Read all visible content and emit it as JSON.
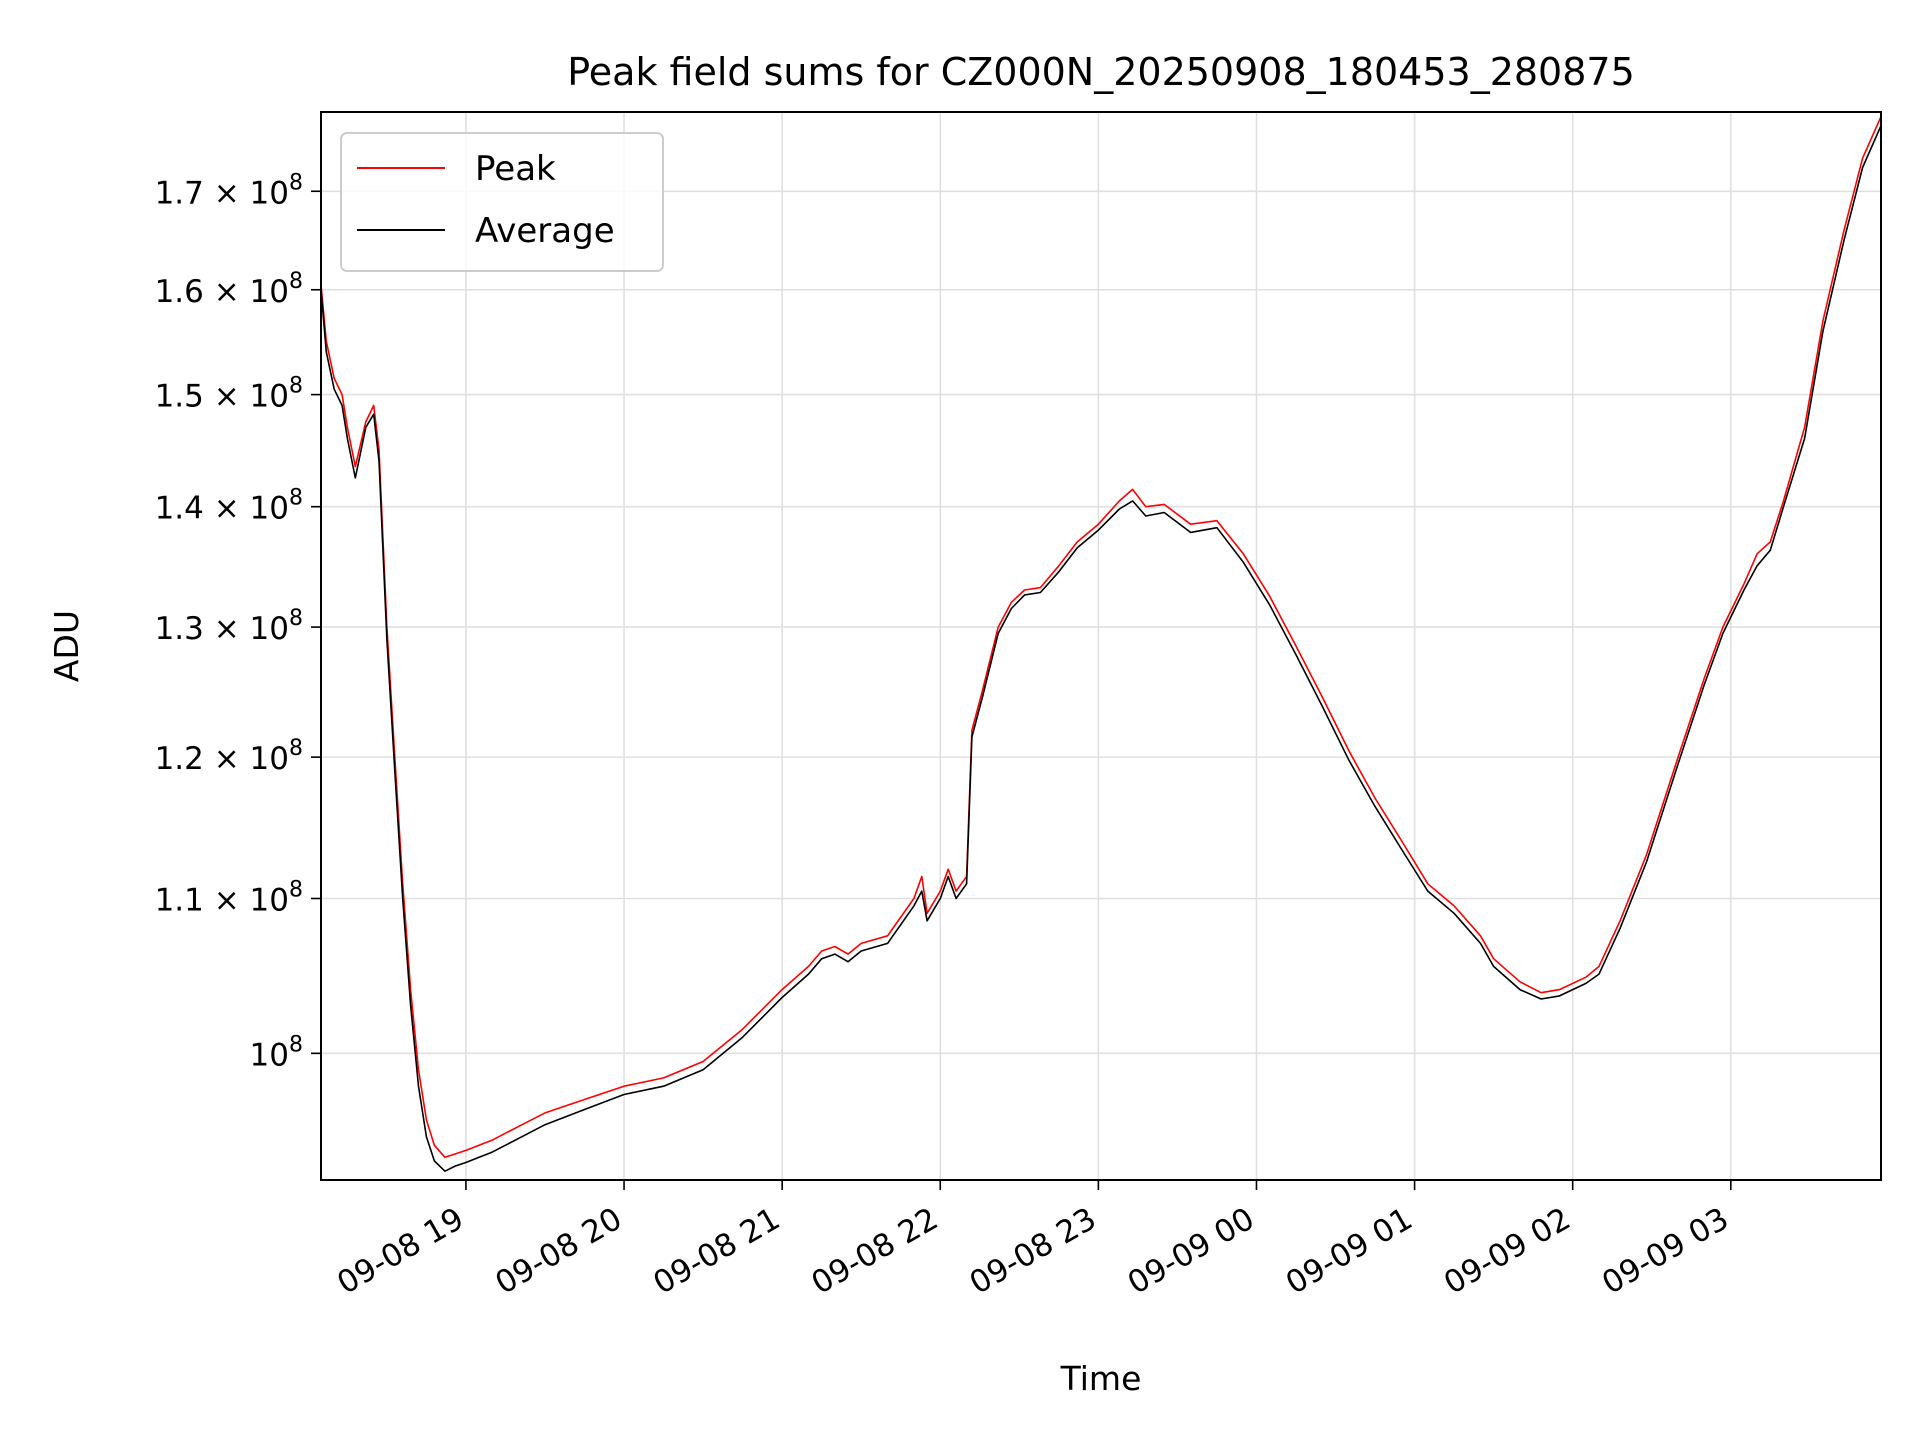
{
  "chart_data": {
    "type": "line",
    "title": "Peak field sums for CZ000N_20250908_180453_280875",
    "xlabel": "Time",
    "ylabel": "ADU",
    "yscale": "log",
    "ylim": [
      92500000,
      178500000
    ],
    "xlim": [
      "2025-09-08T18:05",
      "2025-09-09T03:57"
    ],
    "grid": true,
    "legend": "top-left",
    "x_ticks": [
      {
        "t": "2025-09-08T19:00",
        "label": "09-08 19"
      },
      {
        "t": "2025-09-08T20:00",
        "label": "09-08 20"
      },
      {
        "t": "2025-09-08T21:00",
        "label": "09-08 21"
      },
      {
        "t": "2025-09-08T22:00",
        "label": "09-08 22"
      },
      {
        "t": "2025-09-08T23:00",
        "label": "09-08 23"
      },
      {
        "t": "2025-09-09T00:00",
        "label": "09-09 00"
      },
      {
        "t": "2025-09-09T01:00",
        "label": "09-09 01"
      },
      {
        "t": "2025-09-09T02:00",
        "label": "09-09 02"
      },
      {
        "t": "2025-09-09T03:00",
        "label": "09-09 03"
      }
    ],
    "y_ticks": [
      {
        "value": 100000000,
        "mant": "",
        "exp": "8"
      },
      {
        "value": 110000000,
        "mant": "1.1",
        "exp": "8"
      },
      {
        "value": 120000000,
        "mant": "1.2",
        "exp": "8"
      },
      {
        "value": 130000000,
        "mant": "1.3",
        "exp": "8"
      },
      {
        "value": 140000000,
        "mant": "1.4",
        "exp": "8"
      },
      {
        "value": 150000000,
        "mant": "1.5",
        "exp": "8"
      },
      {
        "value": 160000000,
        "mant": "1.6",
        "exp": "8"
      },
      {
        "value": 170000000,
        "mant": "1.7",
        "exp": "8"
      }
    ],
    "series": [
      {
        "name": "Peak",
        "color": "#ff0000",
        "points": [
          [
            "2025-09-08T18:05",
            160500000
          ],
          [
            "2025-09-08T18:07",
            155000000
          ],
          [
            "2025-09-08T18:10",
            151500000
          ],
          [
            "2025-09-08T18:13",
            150000000
          ],
          [
            "2025-09-08T18:15",
            147000000
          ],
          [
            "2025-09-08T18:18",
            143500000
          ],
          [
            "2025-09-08T18:22",
            147500000
          ],
          [
            "2025-09-08T18:25",
            149000000
          ],
          [
            "2025-09-08T18:27",
            145000000
          ],
          [
            "2025-09-08T18:30",
            130000000
          ],
          [
            "2025-09-08T18:33",
            120000000
          ],
          [
            "2025-09-08T18:36",
            111000000
          ],
          [
            "2025-09-08T18:39",
            104000000
          ],
          [
            "2025-09-08T18:42",
            99000000
          ],
          [
            "2025-09-08T18:45",
            96000000
          ],
          [
            "2025-09-08T18:48",
            94500000
          ],
          [
            "2025-09-08T18:52",
            93800000
          ],
          [
            "2025-09-08T18:56",
            94000000
          ],
          [
            "2025-09-08T19:00",
            94200000
          ],
          [
            "2025-09-08T19:05",
            94500000
          ],
          [
            "2025-09-08T19:10",
            94800000
          ],
          [
            "2025-09-08T19:20",
            95600000
          ],
          [
            "2025-09-08T19:30",
            96400000
          ],
          [
            "2025-09-08T19:45",
            97200000
          ],
          [
            "2025-09-08T20:00",
            98000000
          ],
          [
            "2025-09-08T20:15",
            98500000
          ],
          [
            "2025-09-08T20:30",
            99500000
          ],
          [
            "2025-09-08T20:45",
            101500000
          ],
          [
            "2025-09-08T21:00",
            104000000
          ],
          [
            "2025-09-08T21:10",
            105500000
          ],
          [
            "2025-09-08T21:15",
            106500000
          ],
          [
            "2025-09-08T21:20",
            106800000
          ],
          [
            "2025-09-08T21:25",
            106300000
          ],
          [
            "2025-09-08T21:30",
            107000000
          ],
          [
            "2025-09-08T21:40",
            107500000
          ],
          [
            "2025-09-08T21:50",
            110000000
          ],
          [
            "2025-09-08T21:53",
            111500000
          ],
          [
            "2025-09-08T21:55",
            109000000
          ],
          [
            "2025-09-08T22:00",
            110500000
          ],
          [
            "2025-09-08T22:03",
            112000000
          ],
          [
            "2025-09-08T22:06",
            110500000
          ],
          [
            "2025-09-08T22:10",
            111500000
          ],
          [
            "2025-09-08T22:12",
            122000000
          ],
          [
            "2025-09-08T22:16",
            125000000
          ],
          [
            "2025-09-08T22:22",
            130000000
          ],
          [
            "2025-09-08T22:27",
            132000000
          ],
          [
            "2025-09-08T22:32",
            133000000
          ],
          [
            "2025-09-08T22:38",
            133200000
          ],
          [
            "2025-09-08T22:45",
            135000000
          ],
          [
            "2025-09-08T22:52",
            137000000
          ],
          [
            "2025-09-08T23:00",
            138500000
          ],
          [
            "2025-09-08T23:08",
            140500000
          ],
          [
            "2025-09-08T23:13",
            141500000
          ],
          [
            "2025-09-08T23:18",
            140000000
          ],
          [
            "2025-09-08T23:25",
            140200000
          ],
          [
            "2025-09-08T23:35",
            138500000
          ],
          [
            "2025-09-08T23:45",
            138800000
          ],
          [
            "2025-09-08T23:55",
            136000000
          ],
          [
            "2025-09-09T00:05",
            132500000
          ],
          [
            "2025-09-09T00:15",
            128500000
          ],
          [
            "2025-09-09T00:25",
            124500000
          ],
          [
            "2025-09-09T00:35",
            120500000
          ],
          [
            "2025-09-09T00:45",
            117000000
          ],
          [
            "2025-09-09T00:55",
            114000000
          ],
          [
            "2025-09-09T01:05",
            111000000
          ],
          [
            "2025-09-09T01:15",
            109500000
          ],
          [
            "2025-09-09T01:25",
            107500000
          ],
          [
            "2025-09-09T01:30",
            106000000
          ],
          [
            "2025-09-09T01:40",
            104500000
          ],
          [
            "2025-09-09T01:48",
            103800000
          ],
          [
            "2025-09-09T01:55",
            104000000
          ],
          [
            "2025-09-09T02:05",
            104800000
          ],
          [
            "2025-09-09T02:10",
            105500000
          ],
          [
            "2025-09-09T02:18",
            108500000
          ],
          [
            "2025-09-09T02:28",
            113000000
          ],
          [
            "2025-09-09T02:40",
            120000000
          ],
          [
            "2025-09-09T02:50",
            126000000
          ],
          [
            "2025-09-09T02:57",
            130000000
          ],
          [
            "2025-09-09T03:05",
            133500000
          ],
          [
            "2025-09-09T03:10",
            136000000
          ],
          [
            "2025-09-09T03:15",
            137000000
          ],
          [
            "2025-09-09T03:20",
            140500000
          ],
          [
            "2025-09-09T03:28",
            147000000
          ],
          [
            "2025-09-09T03:35",
            157000000
          ],
          [
            "2025-09-09T03:43",
            166000000
          ],
          [
            "2025-09-09T03:50",
            173500000
          ],
          [
            "2025-09-09T03:57",
            178000000
          ]
        ]
      },
      {
        "name": "Average",
        "color": "#000000",
        "points": [
          [
            "2025-09-08T18:05",
            160000000
          ],
          [
            "2025-09-08T18:07",
            154000000
          ],
          [
            "2025-09-08T18:10",
            150500000
          ],
          [
            "2025-09-08T18:13",
            149000000
          ],
          [
            "2025-09-08T18:15",
            146000000
          ],
          [
            "2025-09-08T18:18",
            142500000
          ],
          [
            "2025-09-08T18:22",
            147000000
          ],
          [
            "2025-09-08T18:25",
            148200000
          ],
          [
            "2025-09-08T18:27",
            144000000
          ],
          [
            "2025-09-08T18:30",
            129000000
          ],
          [
            "2025-09-08T18:33",
            119000000
          ],
          [
            "2025-09-08T18:36",
            110000000
          ],
          [
            "2025-09-08T18:39",
            103000000
          ],
          [
            "2025-09-08T18:42",
            98000000
          ],
          [
            "2025-09-08T18:45",
            95000000
          ],
          [
            "2025-09-08T18:48",
            93600000
          ],
          [
            "2025-09-08T18:52",
            93000000
          ],
          [
            "2025-09-08T18:56",
            93300000
          ],
          [
            "2025-09-08T19:00",
            93500000
          ],
          [
            "2025-09-08T19:05",
            93800000
          ],
          [
            "2025-09-08T19:10",
            94100000
          ],
          [
            "2025-09-08T19:20",
            94900000
          ],
          [
            "2025-09-08T19:30",
            95700000
          ],
          [
            "2025-09-08T19:45",
            96600000
          ],
          [
            "2025-09-08T20:00",
            97500000
          ],
          [
            "2025-09-08T20:15",
            98000000
          ],
          [
            "2025-09-08T20:30",
            99000000
          ],
          [
            "2025-09-08T20:45",
            101000000
          ],
          [
            "2025-09-08T21:00",
            103500000
          ],
          [
            "2025-09-08T21:10",
            105000000
          ],
          [
            "2025-09-08T21:15",
            106000000
          ],
          [
            "2025-09-08T21:20",
            106300000
          ],
          [
            "2025-09-08T21:25",
            105800000
          ],
          [
            "2025-09-08T21:30",
            106500000
          ],
          [
            "2025-09-08T21:40",
            107000000
          ],
          [
            "2025-09-08T21:50",
            109500000
          ],
          [
            "2025-09-08T21:53",
            110500000
          ],
          [
            "2025-09-08T21:55",
            108500000
          ],
          [
            "2025-09-08T22:00",
            110000000
          ],
          [
            "2025-09-08T22:03",
            111500000
          ],
          [
            "2025-09-08T22:06",
            110000000
          ],
          [
            "2025-09-08T22:10",
            111000000
          ],
          [
            "2025-09-08T22:12",
            121500000
          ],
          [
            "2025-09-08T22:16",
            124500000
          ],
          [
            "2025-09-08T22:22",
            129500000
          ],
          [
            "2025-09-08T22:27",
            131500000
          ],
          [
            "2025-09-08T22:32",
            132600000
          ],
          [
            "2025-09-08T22:38",
            132800000
          ],
          [
            "2025-09-08T22:45",
            134500000
          ],
          [
            "2025-09-08T22:52",
            136500000
          ],
          [
            "2025-09-08T23:00",
            138000000
          ],
          [
            "2025-09-08T23:08",
            139800000
          ],
          [
            "2025-09-08T23:13",
            140500000
          ],
          [
            "2025-09-08T23:18",
            139200000
          ],
          [
            "2025-09-08T23:25",
            139500000
          ],
          [
            "2025-09-08T23:35",
            137800000
          ],
          [
            "2025-09-08T23:45",
            138200000
          ],
          [
            "2025-09-08T23:55",
            135300000
          ],
          [
            "2025-09-09T00:05",
            131800000
          ],
          [
            "2025-09-09T00:15",
            127800000
          ],
          [
            "2025-09-09T00:25",
            123800000
          ],
          [
            "2025-09-09T00:35",
            119800000
          ],
          [
            "2025-09-09T00:45",
            116400000
          ],
          [
            "2025-09-09T00:55",
            113400000
          ],
          [
            "2025-09-09T01:05",
            110500000
          ],
          [
            "2025-09-09T01:15",
            109000000
          ],
          [
            "2025-09-09T01:25",
            107000000
          ],
          [
            "2025-09-09T01:30",
            105500000
          ],
          [
            "2025-09-09T01:40",
            104000000
          ],
          [
            "2025-09-09T01:48",
            103400000
          ],
          [
            "2025-09-09T01:55",
            103600000
          ],
          [
            "2025-09-09T02:05",
            104400000
          ],
          [
            "2025-09-09T02:10",
            105000000
          ],
          [
            "2025-09-09T02:18",
            108000000
          ],
          [
            "2025-09-09T02:28",
            112500000
          ],
          [
            "2025-09-09T02:40",
            119500000
          ],
          [
            "2025-09-09T02:50",
            125500000
          ],
          [
            "2025-09-09T02:57",
            129500000
          ],
          [
            "2025-09-09T03:05",
            133000000
          ],
          [
            "2025-09-09T03:10",
            135000000
          ],
          [
            "2025-09-09T03:15",
            136300000
          ],
          [
            "2025-09-09T03:20",
            140000000
          ],
          [
            "2025-09-09T03:28",
            146000000
          ],
          [
            "2025-09-09T03:35",
            156000000
          ],
          [
            "2025-09-09T03:43",
            165000000
          ],
          [
            "2025-09-09T03:50",
            172500000
          ],
          [
            "2025-09-09T03:57",
            177000000
          ]
        ]
      }
    ]
  }
}
